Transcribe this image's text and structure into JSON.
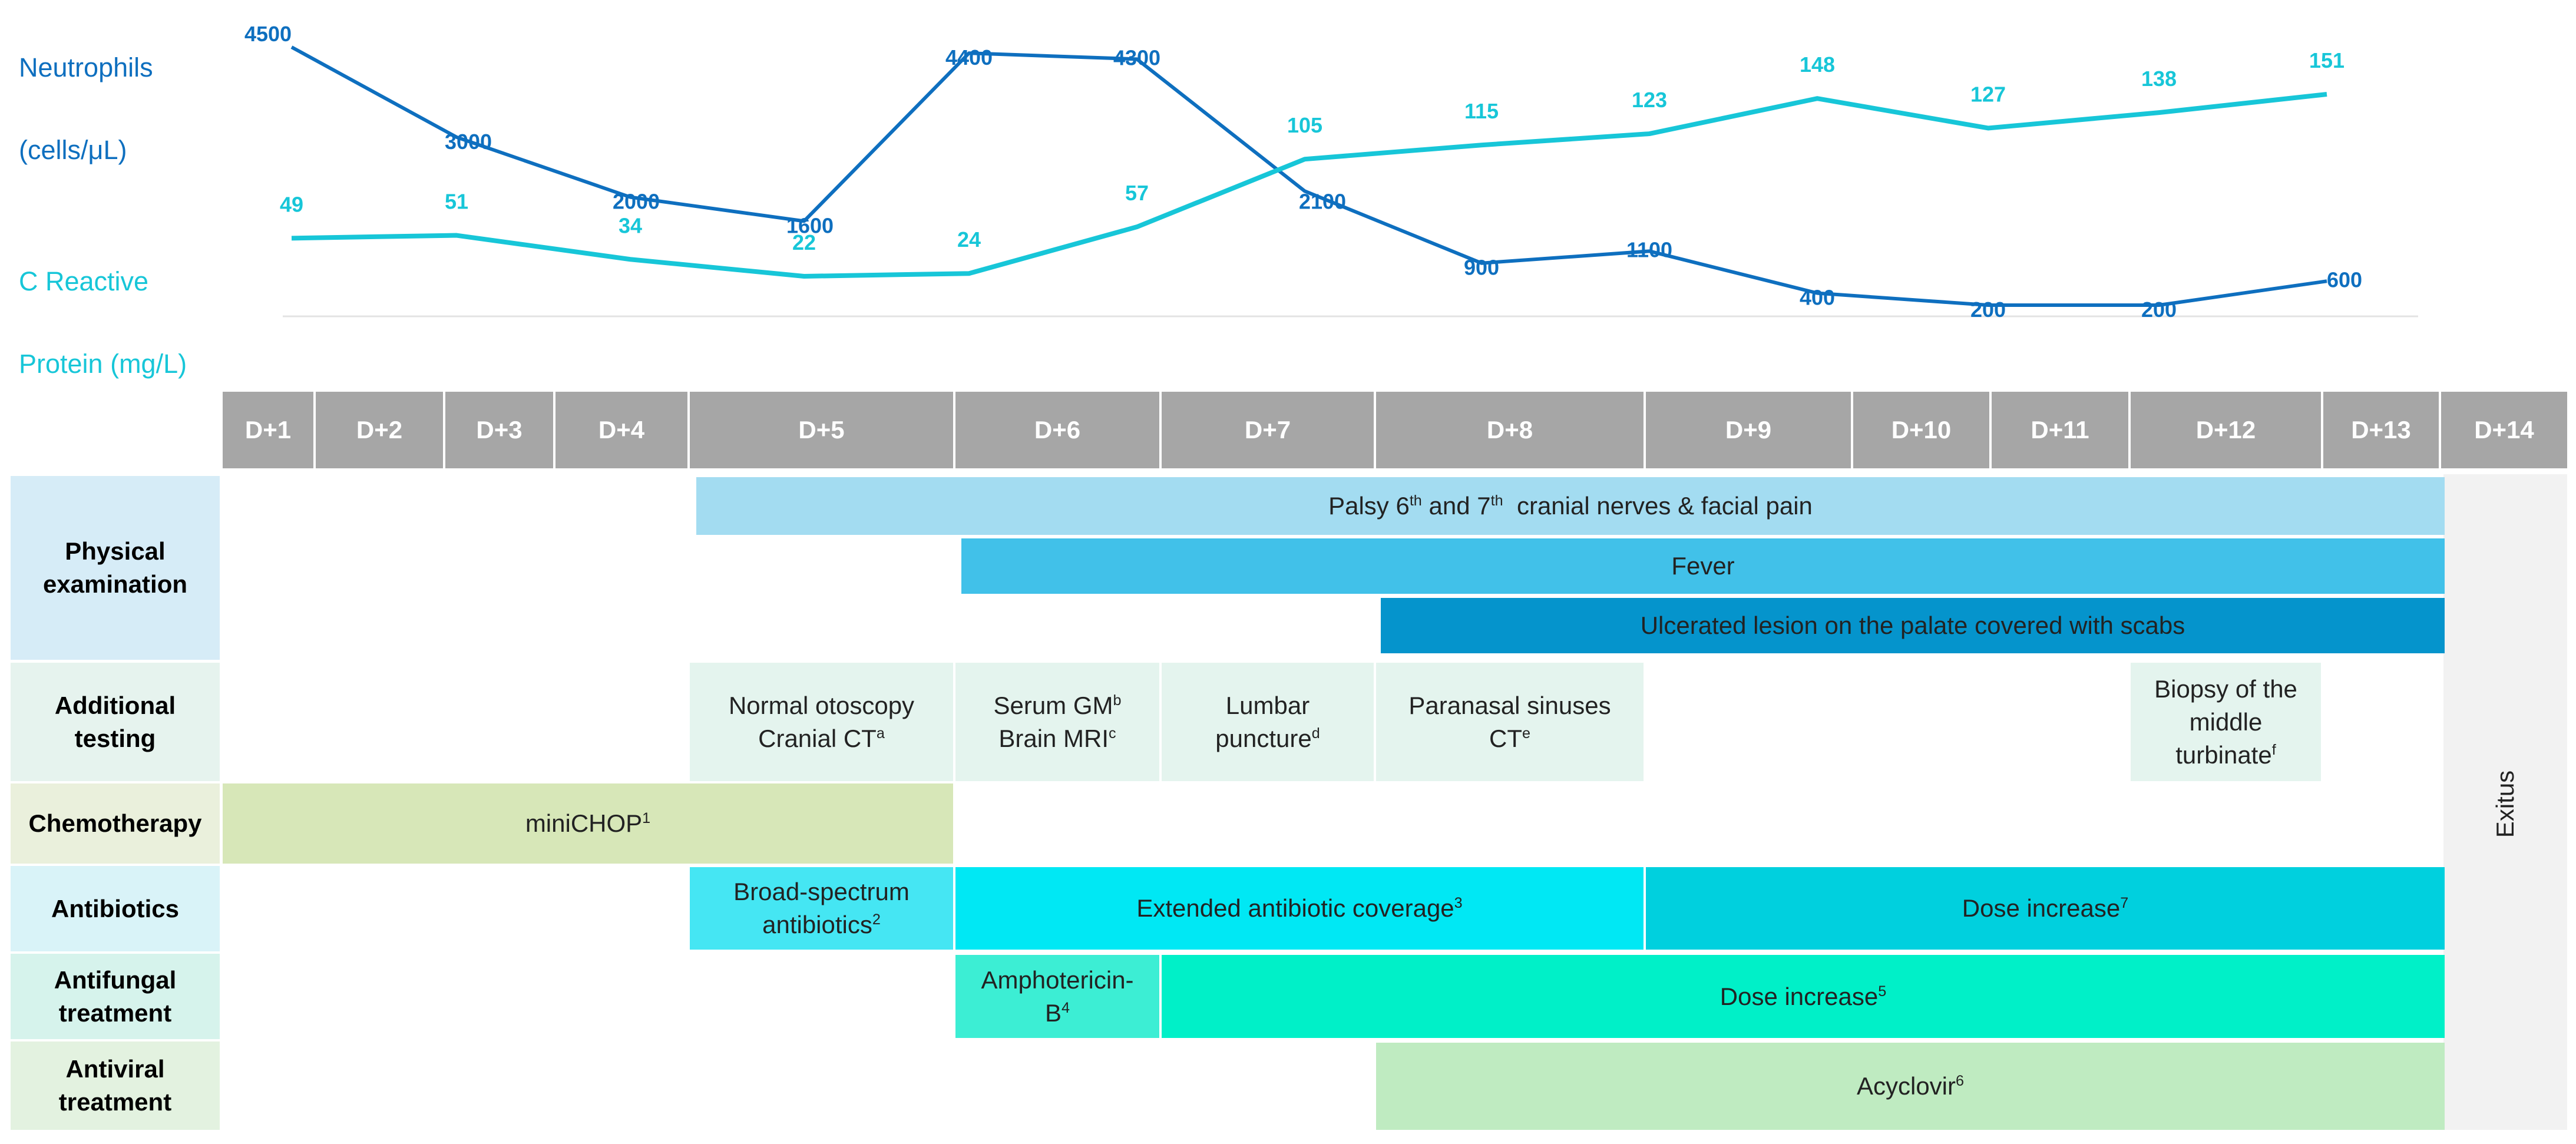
{
  "chart_data": {
    "type": "line",
    "days": [
      "D+1",
      "D+2",
      "D+3",
      "D+4",
      "D+5",
      "D+6",
      "D+7",
      "D+8",
      "D+9",
      "D+10",
      "D+11",
      "D+12",
      "D+13",
      "D+14"
    ],
    "series": [
      {
        "name": "Neutrophils (cells/µL)",
        "label_lines": [
          "Neutrophils",
          "(cells/μL)"
        ],
        "color": "#0e6fbf",
        "points": [
          {
            "day": 1,
            "value": 4500
          },
          {
            "day": 2,
            "value": 3000
          },
          {
            "day": 3,
            "value": 2000
          },
          {
            "day": 4,
            "value": 1600
          },
          {
            "day": 5,
            "value": 4400
          },
          {
            "day": 6,
            "value": 4300
          },
          {
            "day": 7,
            "value": 2100
          },
          {
            "day": 8,
            "value": 900
          },
          {
            "day": 9,
            "value": 1100
          },
          {
            "day": 10,
            "value": 400
          },
          {
            "day": 11,
            "value": 200
          },
          {
            "day": 12,
            "value": 200
          },
          {
            "day": 13,
            "value": 600
          }
        ]
      },
      {
        "name": "C Reactive Protein (mg/L)",
        "label_lines": [
          "C Reactive",
          "Protein (mg/L)"
        ],
        "color": "#17c6d8",
        "points": [
          {
            "day": 1,
            "value": 49
          },
          {
            "day": 2,
            "value": 51
          },
          {
            "day": 3,
            "value": 34
          },
          {
            "day": 4,
            "value": 22
          },
          {
            "day": 5,
            "value": 24
          },
          {
            "day": 6,
            "value": 57
          },
          {
            "day": 7,
            "value": 105
          },
          {
            "day": 8,
            "value": 115
          },
          {
            "day": 9,
            "value": 123
          },
          {
            "day": 10,
            "value": 148
          },
          {
            "day": 11,
            "value": 127
          },
          {
            "day": 12,
            "value": 138
          },
          {
            "day": 13,
            "value": 151
          }
        ]
      }
    ]
  },
  "rows": [
    {
      "label": "Physical examination",
      "bg": "#d6ecf7"
    },
    {
      "label": "Additional testing",
      "bg": "#e6f3ee"
    },
    {
      "label": "Chemotherapy",
      "bg": "#eaf0dc"
    },
    {
      "label": "Antibiotics",
      "bg": "#d9f3f8"
    },
    {
      "label": "Antifungal treatment",
      "bg": "#d6f3ec"
    },
    {
      "label": "Antiviral treatment",
      "bg": "#e3f2e0"
    }
  ],
  "events": {
    "palsy": {
      "text": "Palsy 6",
      "sup1": "th",
      "mid": " and 7",
      "sup2": "th",
      "tail": "  cranial nerves & facial pain",
      "color": "#a3dcf1"
    },
    "fever": {
      "text": "Fever",
      "color": "#41c1e9"
    },
    "ulcer": {
      "text": "Ulcerated lesion on the palate covered with scabs",
      "color": "#0594cc"
    },
    "test_d5": {
      "line1": "Normal otoscopy",
      "line2": "Cranial CT",
      "sup": "a",
      "color": "#e4f4ee"
    },
    "test_d6": {
      "line1": "Serum GM",
      "sup1": "b",
      "line2": "Brain MRI",
      "sup2": "c",
      "color": "#e4f4ee"
    },
    "test_d7": {
      "line1": "Lumbar",
      "line2": "puncture",
      "sup": "d",
      "color": "#e4f4ee"
    },
    "test_d8": {
      "line1": "Paranasal sinuses",
      "line2": "CT",
      "sup": "e",
      "color": "#e4f4ee"
    },
    "test_d12": {
      "line1": "Biopsy of the",
      "line2": "middle",
      "line3": "turbinate",
      "sup": "f",
      "color": "#e4f4ee"
    },
    "chemo": {
      "text": "miniCHOP",
      "sup": "1",
      "color": "#d7e7b8"
    },
    "abx1": {
      "line1": "Broad-spectrum",
      "line2": "antibiotics",
      "sup": "2",
      "color": "#45e6f3"
    },
    "abx2": {
      "text": "Extended antibiotic coverage",
      "sup": "3",
      "color": "#00e8f4"
    },
    "abx3": {
      "text": "Dose increase",
      "sup": "7",
      "color": "#00d0de"
    },
    "af1": {
      "line1": "Amphotericin-",
      "line2": "B",
      "sup": "4",
      "color": "#3ceed4"
    },
    "af2": {
      "text": "Dose increase",
      "sup": "5",
      "color": "#00f0c8"
    },
    "av": {
      "text": "Acyclovir",
      "sup": "6",
      "color": "#bfebc1"
    },
    "exitus": {
      "text": "Exitus"
    }
  }
}
